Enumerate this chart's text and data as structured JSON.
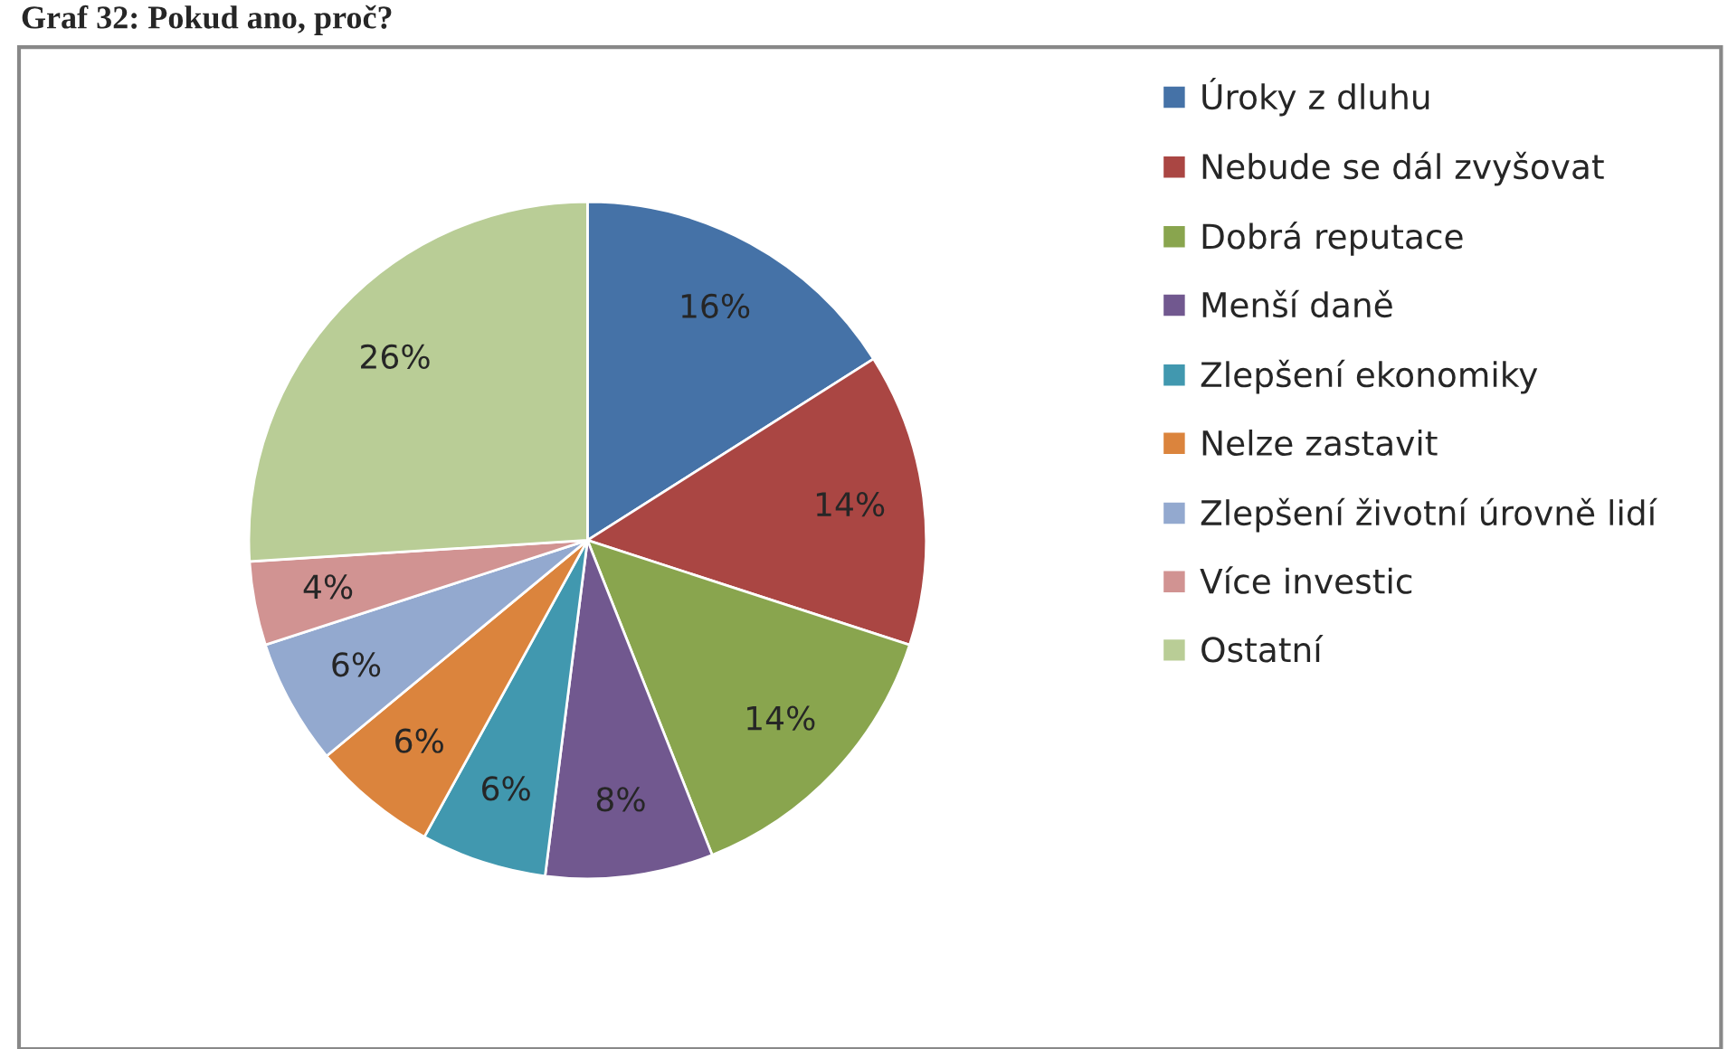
{
  "chart_data": {
    "type": "pie",
    "title": "Graf 32: Pokud ano, proč?",
    "categories": [
      "Úroky z dluhu",
      "Nebude se dál zvyšovat",
      "Dobrá reputace",
      "Menší daně",
      "Zlepšení ekonomiky",
      "Nelze zastavit",
      "Zlepšení životní úrovně lidí",
      "Více investic",
      "Ostatní"
    ],
    "values": [
      16,
      14,
      14,
      8,
      6,
      6,
      6,
      4,
      26
    ],
    "colors": [
      "#4572a7",
      "#aa4643",
      "#89a54e",
      "#71588f",
      "#4198af",
      "#db843d",
      "#93a9cf",
      "#d19392",
      "#b9cd96"
    ],
    "value_labels": [
      "16%",
      "14%",
      "14%",
      "8%",
      "6%",
      "6%",
      "6%",
      "4%",
      "26%"
    ],
    "legend": "right"
  }
}
